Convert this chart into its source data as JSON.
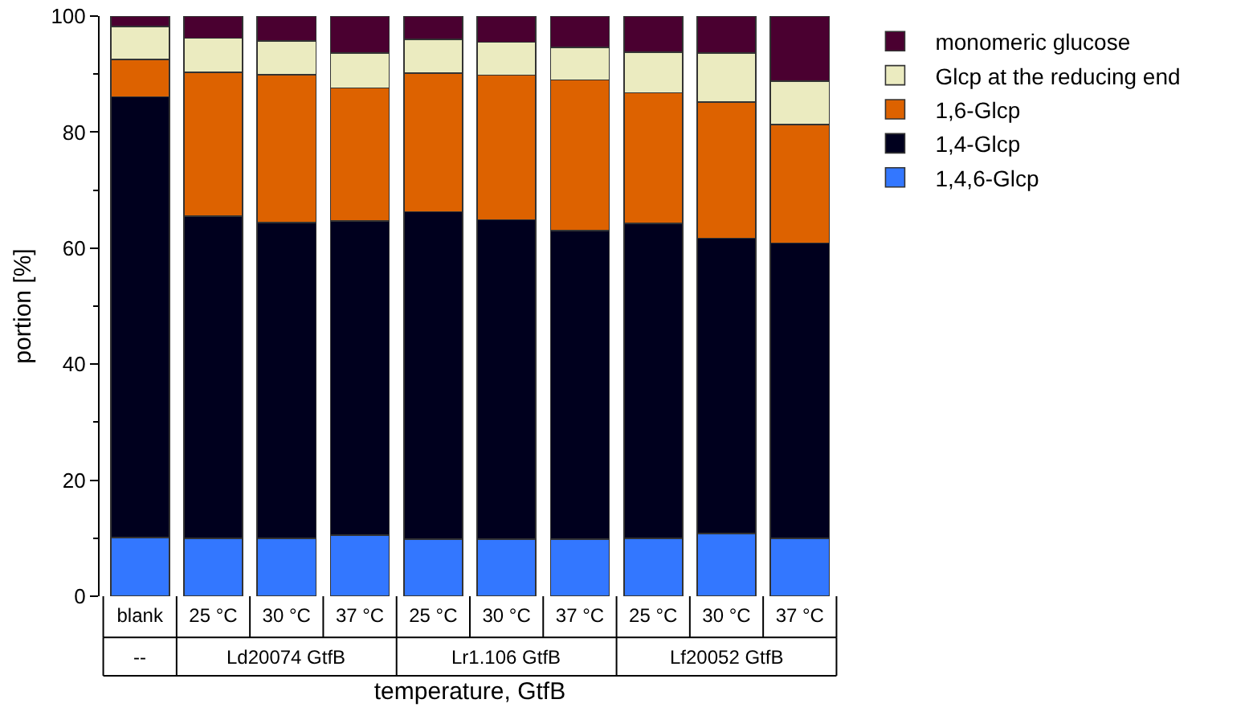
{
  "chart_data": {
    "type": "bar",
    "stacked": true,
    "xlabel": "temperature, GtfB",
    "ylabel": "portion [%]",
    "categories": [
      "blank",
      "25 °C",
      "30 °C",
      "37 °C",
      "25 °C",
      "30 °C",
      "37 °C",
      "25 °C",
      "30 °C",
      "37 °C"
    ],
    "series": [
      {
        "name": "1,4,6-Glcp",
        "color": "#3377ff",
        "values": [
          10.1,
          10.0,
          10.0,
          10.5,
          9.8,
          9.8,
          9.8,
          10.0,
          10.8,
          10.0
        ]
      },
      {
        "name": "1,4-Glcp",
        "color": "#00001e",
        "values": [
          76.0,
          55.5,
          54.4,
          54.2,
          56.5,
          55.1,
          53.2,
          54.3,
          50.9,
          50.9
        ]
      },
      {
        "name": "1,6-Glcp",
        "color": "#dd6200",
        "values": [
          6.4,
          24.8,
          25.5,
          22.9,
          23.9,
          24.9,
          26.0,
          22.5,
          23.5,
          20.4
        ]
      },
      {
        "name": "Glcp at the reducing end",
        "color": "#ebebc0",
        "values": [
          5.7,
          5.9,
          5.8,
          6.0,
          5.8,
          5.7,
          5.6,
          7.0,
          8.4,
          7.5
        ]
      },
      {
        "name": "monomeric glucose",
        "color": "#4a0030",
        "values": [
          1.8,
          3.8,
          4.3,
          6.4,
          4.0,
          4.5,
          5.4,
          6.2,
          6.4,
          11.2
        ]
      }
    ],
    "annotations": [
      "--",
      "Ld20074 GtfB",
      "Lr1.106 GtfB",
      "Lf20052 GtfB"
    ],
    "ylim": [
      0,
      100
    ],
    "yticks": [
      0,
      20,
      40,
      60,
      80,
      100
    ],
    "grid": false,
    "legend": "top right"
  }
}
